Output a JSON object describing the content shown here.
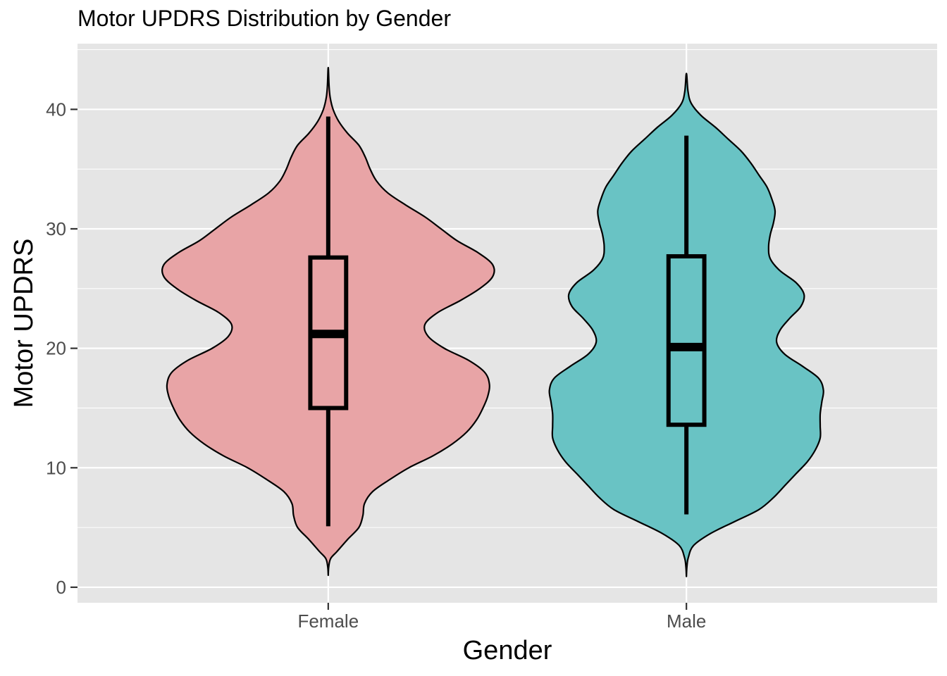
{
  "chart_data": {
    "type": "violin",
    "title": "Motor UPDRS Distribution by Gender",
    "xlabel": "Gender",
    "ylabel": "Motor UPDRS",
    "ylim": [
      -1.3,
      45.5
    ],
    "yticks": [
      0,
      10,
      20,
      30,
      40
    ],
    "grid": true,
    "legend": "none",
    "categories": [
      "Female",
      "Male"
    ],
    "colors": {
      "Female": "#e8a4a6",
      "Male": "#69c3c4",
      "panel": "#e5e5e5",
      "grid": "#ffffff"
    },
    "boxplots": [
      {
        "category": "Female",
        "min": 5.1,
        "q1": 15.0,
        "median": 21.2,
        "q3": 27.6,
        "max": 39.4
      },
      {
        "category": "Male",
        "min": 6.1,
        "q1": 13.6,
        "median": 20.1,
        "q3": 27.7,
        "max": 37.8
      }
    ],
    "density_profiles": [
      {
        "category": "Female",
        "profile": [
          [
            1.0,
            0.0
          ],
          [
            1.7,
            0.003
          ],
          [
            2.4,
            0.015
          ],
          [
            3.0,
            0.055
          ],
          [
            4.0,
            0.12
          ],
          [
            5.0,
            0.19
          ],
          [
            6.0,
            0.215
          ],
          [
            7.0,
            0.225
          ],
          [
            8.0,
            0.275
          ],
          [
            9.0,
            0.38
          ],
          [
            10.0,
            0.5
          ],
          [
            11.0,
            0.65
          ],
          [
            12.0,
            0.77
          ],
          [
            13.0,
            0.86
          ],
          [
            14.0,
            0.92
          ],
          [
            15.0,
            0.96
          ],
          [
            16.0,
            0.99
          ],
          [
            17.0,
            1.0
          ],
          [
            18.0,
            0.97
          ],
          [
            19.0,
            0.87
          ],
          [
            20.0,
            0.72
          ],
          [
            21.0,
            0.62
          ],
          [
            22.0,
            0.6
          ],
          [
            23.0,
            0.68
          ],
          [
            24.0,
            0.82
          ],
          [
            25.0,
            0.94
          ],
          [
            26.0,
            1.02
          ],
          [
            27.0,
            1.02
          ],
          [
            28.0,
            0.93
          ],
          [
            29.0,
            0.8
          ],
          [
            30.0,
            0.7
          ],
          [
            31.0,
            0.6
          ],
          [
            32.0,
            0.48
          ],
          [
            33.0,
            0.37
          ],
          [
            34.0,
            0.3
          ],
          [
            35.0,
            0.26
          ],
          [
            36.0,
            0.23
          ],
          [
            37.0,
            0.19
          ],
          [
            38.0,
            0.12
          ],
          [
            39.0,
            0.065
          ],
          [
            40.0,
            0.03
          ],
          [
            41.0,
            0.012
          ],
          [
            42.0,
            0.005
          ],
          [
            43.5,
            0.0
          ]
        ]
      },
      {
        "category": "Male",
        "profile": [
          [
            0.9,
            0.0
          ],
          [
            1.7,
            0.003
          ],
          [
            2.5,
            0.012
          ],
          [
            3.5,
            0.045
          ],
          [
            4.5,
            0.15
          ],
          [
            5.5,
            0.3
          ],
          [
            6.5,
            0.45
          ],
          [
            7.5,
            0.54
          ],
          [
            8.5,
            0.61
          ],
          [
            9.5,
            0.68
          ],
          [
            10.5,
            0.75
          ],
          [
            11.5,
            0.8
          ],
          [
            12.5,
            0.83
          ],
          [
            13.5,
            0.83
          ],
          [
            14.5,
            0.83
          ],
          [
            15.5,
            0.84
          ],
          [
            16.5,
            0.85
          ],
          [
            17.5,
            0.82
          ],
          [
            18.5,
            0.72
          ],
          [
            19.5,
            0.61
          ],
          [
            20.5,
            0.56
          ],
          [
            21.5,
            0.58
          ],
          [
            22.5,
            0.64
          ],
          [
            23.5,
            0.71
          ],
          [
            24.5,
            0.73
          ],
          [
            25.5,
            0.68
          ],
          [
            26.5,
            0.58
          ],
          [
            27.5,
            0.52
          ],
          [
            28.5,
            0.51
          ],
          [
            29.5,
            0.52
          ],
          [
            30.5,
            0.54
          ],
          [
            31.5,
            0.55
          ],
          [
            32.5,
            0.53
          ],
          [
            33.5,
            0.5
          ],
          [
            34.5,
            0.45
          ],
          [
            35.5,
            0.4
          ],
          [
            36.5,
            0.34
          ],
          [
            37.5,
            0.26
          ],
          [
            38.5,
            0.18
          ],
          [
            39.5,
            0.09
          ],
          [
            40.5,
            0.03
          ],
          [
            41.5,
            0.01
          ],
          [
            43.0,
            0.0
          ]
        ]
      }
    ]
  }
}
